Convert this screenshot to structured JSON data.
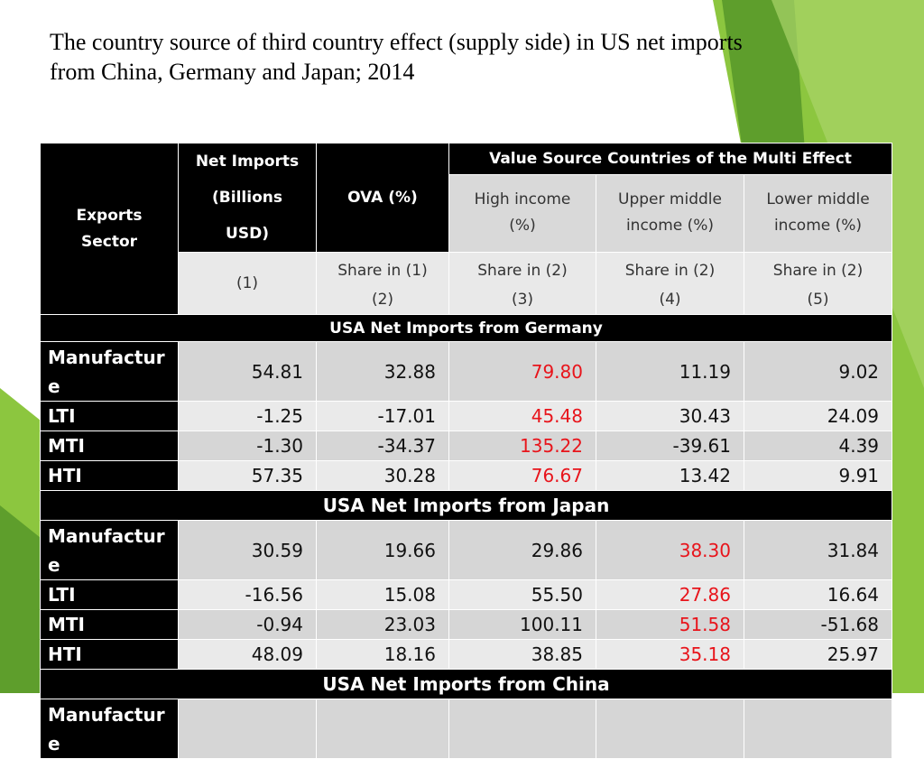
{
  "slide": {
    "title_line1": "The country source of third country effect (supply side) in US net imports",
    "title_line2": "from China, Germany and Japan; 2014"
  },
  "colors": {
    "accent_green": "#7ab648",
    "highlight_red": "#e8141b",
    "header_black": "#000000"
  },
  "table": {
    "header": {
      "sector": [
        "Exports",
        "Sector"
      ],
      "net_imports": [
        "Net Imports",
        "(Billions USD)"
      ],
      "ova": "OVA (%)",
      "value_source_group": "Value Source Countries of the Multi Effect",
      "high_income": [
        "High income",
        "(%)"
      ],
      "upper_middle": [
        "Upper middle",
        "income (%)"
      ],
      "lower_middle": [
        "Lower middle",
        "income (%)"
      ],
      "share_labels": [
        "Share in (1)",
        "Share in (2)",
        "Share in (2)",
        "Share in (2)"
      ],
      "col_numbers": [
        "(1)",
        "(2)",
        "(3)",
        "(4)",
        "(5)"
      ]
    },
    "groups": [
      {
        "label": "USA Net Imports from Germany",
        "rows": [
          {
            "sector": [
              "Manufactur",
              "e"
            ],
            "values": [
              "54.81",
              "32.88",
              "79.80",
              "11.19",
              "9.02"
            ]
          },
          {
            "sector": [
              "LTI"
            ],
            "values": [
              "-1.25",
              "-17.01",
              "45.48",
              "30.43",
              "24.09"
            ]
          },
          {
            "sector": [
              "MTI"
            ],
            "values": [
              "-1.30",
              "-34.37",
              "135.22",
              "-39.61",
              "4.39"
            ]
          },
          {
            "sector": [
              "HTI"
            ],
            "values": [
              "57.35",
              "30.28",
              "76.67",
              "13.42",
              "9.91"
            ]
          }
        ]
      },
      {
        "label": "USA Net Imports from Japan",
        "rows": [
          {
            "sector": [
              "Manufactur",
              "e"
            ],
            "values": [
              "30.59",
              "19.66",
              "29.86",
              "38.30",
              "31.84"
            ]
          },
          {
            "sector": [
              "LTI"
            ],
            "values": [
              "-16.56",
              "15.08",
              "55.50",
              "27.86",
              "16.64"
            ]
          },
          {
            "sector": [
              "MTI"
            ],
            "values": [
              "-0.94",
              "23.03",
              "100.11",
              "51.58",
              "-51.68"
            ]
          },
          {
            "sector": [
              "HTI"
            ],
            "values": [
              "48.09",
              "18.16",
              "38.85",
              "35.18",
              "25.97"
            ]
          }
        ]
      },
      {
        "label": "USA Net Imports from China",
        "rows": [
          {
            "sector": [
              "Manufactur",
              "e"
            ],
            "values": [
              "",
              "",
              "",
              "",
              ""
            ]
          }
        ]
      }
    ]
  }
}
